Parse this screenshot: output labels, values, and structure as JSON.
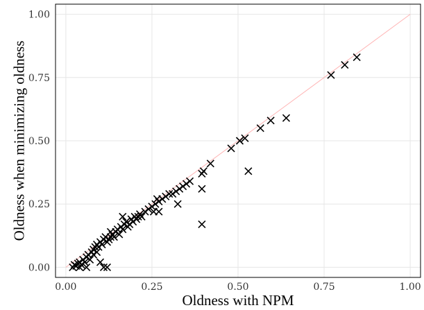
{
  "chart_data": {
    "type": "scatter",
    "xlabel": "Oldness with NPM",
    "ylabel": "Oldness when minimizing oldness",
    "xlim": [
      -0.03,
      1.03
    ],
    "ylim": [
      -0.04,
      1.04
    ],
    "xticks": [
      0.0,
      0.25,
      0.5,
      0.75,
      1.0
    ],
    "yticks": [
      0.0,
      0.25,
      0.5,
      0.75,
      1.0
    ],
    "xtick_labels": [
      "0.00",
      "0.25",
      "0.50",
      "0.75",
      "1.00"
    ],
    "ytick_labels": [
      "0.00",
      "0.25",
      "0.50",
      "0.75",
      "1.00"
    ],
    "grid": true,
    "marker": "x",
    "marker_color": "#000000",
    "reference_line": {
      "from": [
        0,
        0
      ],
      "to": [
        1,
        1
      ],
      "color": "#ffb3b3"
    },
    "points": [
      [
        0.02,
        0.0
      ],
      [
        0.025,
        0.01
      ],
      [
        0.03,
        0.005
      ],
      [
        0.035,
        0.015
      ],
      [
        0.04,
        0.0
      ],
      [
        0.04,
        0.02
      ],
      [
        0.045,
        0.01
      ],
      [
        0.05,
        0.03
      ],
      [
        0.055,
        0.02
      ],
      [
        0.06,
        0.0
      ],
      [
        0.06,
        0.04
      ],
      [
        0.065,
        0.05
      ],
      [
        0.07,
        0.03
      ],
      [
        0.075,
        0.06
      ],
      [
        0.08,
        0.05
      ],
      [
        0.08,
        0.07
      ],
      [
        0.085,
        0.08
      ],
      [
        0.09,
        0.06
      ],
      [
        0.09,
        0.09
      ],
      [
        0.095,
        0.08
      ],
      [
        0.1,
        0.02
      ],
      [
        0.1,
        0.1
      ],
      [
        0.105,
        0.09
      ],
      [
        0.11,
        0.0
      ],
      [
        0.11,
        0.11
      ],
      [
        0.115,
        0.12
      ],
      [
        0.12,
        0.1
      ],
      [
        0.12,
        0.0
      ],
      [
        0.125,
        0.11
      ],
      [
        0.13,
        0.14
      ],
      [
        0.13,
        0.12
      ],
      [
        0.135,
        0.13
      ],
      [
        0.14,
        0.12
      ],
      [
        0.145,
        0.14
      ],
      [
        0.15,
        0.15
      ],
      [
        0.155,
        0.13
      ],
      [
        0.16,
        0.16
      ],
      [
        0.165,
        0.15
      ],
      [
        0.165,
        0.2
      ],
      [
        0.17,
        0.17
      ],
      [
        0.175,
        0.18
      ],
      [
        0.18,
        0.16
      ],
      [
        0.185,
        0.17
      ],
      [
        0.19,
        0.19
      ],
      [
        0.195,
        0.18
      ],
      [
        0.2,
        0.2
      ],
      [
        0.205,
        0.19
      ],
      [
        0.21,
        0.2
      ],
      [
        0.215,
        0.21
      ],
      [
        0.22,
        0.2
      ],
      [
        0.23,
        0.22
      ],
      [
        0.24,
        0.23
      ],
      [
        0.25,
        0.24
      ],
      [
        0.255,
        0.22
      ],
      [
        0.26,
        0.25
      ],
      [
        0.265,
        0.27
      ],
      [
        0.27,
        0.26
      ],
      [
        0.27,
        0.22
      ],
      [
        0.28,
        0.27
      ],
      [
        0.29,
        0.28
      ],
      [
        0.3,
        0.29
      ],
      [
        0.31,
        0.29
      ],
      [
        0.32,
        0.3
      ],
      [
        0.325,
        0.25
      ],
      [
        0.33,
        0.31
      ],
      [
        0.34,
        0.32
      ],
      [
        0.35,
        0.33
      ],
      [
        0.36,
        0.34
      ],
      [
        0.395,
        0.37
      ],
      [
        0.395,
        0.31
      ],
      [
        0.395,
        0.17
      ],
      [
        0.4,
        0.38
      ],
      [
        0.42,
        0.41
      ],
      [
        0.48,
        0.47
      ],
      [
        0.505,
        0.5
      ],
      [
        0.52,
        0.51
      ],
      [
        0.53,
        0.38
      ],
      [
        0.565,
        0.55
      ],
      [
        0.595,
        0.58
      ],
      [
        0.64,
        0.59
      ],
      [
        0.77,
        0.76
      ],
      [
        0.81,
        0.8
      ],
      [
        0.845,
        0.83
      ]
    ]
  }
}
